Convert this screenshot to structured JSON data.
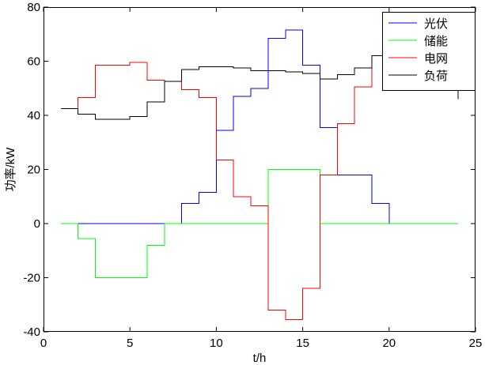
{
  "chart_data": {
    "type": "line",
    "step": "stairs",
    "xlabel": "t/h",
    "ylabel": "功率/kW",
    "xlim": [
      0,
      25
    ],
    "ylim": [
      -40,
      80
    ],
    "xticks": [
      0,
      5,
      10,
      15,
      20,
      25
    ],
    "yticks": [
      -40,
      -20,
      0,
      20,
      40,
      60,
      80
    ],
    "grid": false,
    "legend_position": "top-right",
    "series": [
      {
        "name": "光伏",
        "color": "#0000ff",
        "x": [
          1,
          2,
          3,
          4,
          5,
          6,
          7,
          8,
          9,
          10,
          11,
          12,
          13,
          14,
          15,
          16,
          17,
          18,
          19,
          20,
          21,
          22,
          23,
          24
        ],
        "values": [
          0,
          0,
          0,
          0,
          0,
          0,
          0,
          7.5,
          11.5,
          34.5,
          47,
          50,
          68.5,
          71.5,
          58.5,
          35.5,
          18,
          18,
          7.5,
          0,
          0,
          0,
          0,
          0
        ]
      },
      {
        "name": "储能",
        "color": "#00ff00",
        "x": [
          1,
          2,
          3,
          4,
          5,
          6,
          7,
          8,
          9,
          10,
          11,
          12,
          13,
          14,
          15,
          16,
          17,
          18,
          19,
          20,
          21,
          22,
          23,
          24
        ],
        "values": [
          0,
          -5.5,
          -20,
          -20,
          -20,
          -8,
          0,
          0,
          0,
          0,
          0,
          0,
          20,
          20,
          20,
          0,
          0,
          0,
          0,
          0,
          0,
          0,
          0,
          0
        ]
      },
      {
        "name": "电网",
        "color": "#ff0000",
        "x": [
          1,
          2,
          3,
          4,
          5,
          6,
          7,
          8,
          9,
          10,
          11,
          12,
          13,
          14,
          15,
          16,
          17,
          18,
          19,
          20,
          21,
          22,
          23,
          24
        ],
        "values": [
          42.5,
          46.5,
          58.5,
          58.5,
          59.5,
          53,
          52.5,
          49.5,
          46.5,
          23.5,
          10,
          6.5,
          -32,
          -35.5,
          -24,
          18,
          37,
          50.5,
          62,
          60.5,
          62.5,
          58,
          56,
          46
        ]
      },
      {
        "name": "负荷",
        "color": "#000000",
        "x": [
          1,
          2,
          3,
          4,
          5,
          6,
          7,
          8,
          9,
          10,
          11,
          12,
          13,
          14,
          15,
          16,
          17,
          18,
          19,
          20,
          21,
          22,
          23,
          24
        ],
        "values": [
          42.5,
          40.5,
          38.5,
          38.5,
          39.5,
          45,
          52.5,
          57,
          58,
          58,
          57.5,
          56.5,
          56.5,
          56,
          55.5,
          53.5,
          55,
          57.5,
          62,
          60.5,
          62.5,
          58,
          56,
          46
        ]
      }
    ]
  }
}
